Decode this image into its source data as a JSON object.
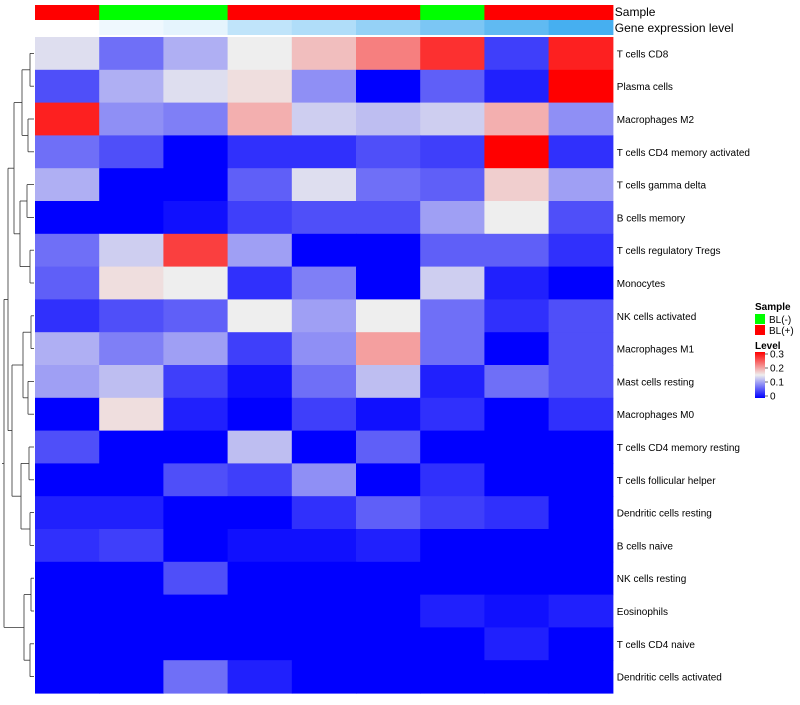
{
  "chart_data": {
    "type": "heatmap",
    "annotation_tracks": [
      {
        "name": "Sample",
        "values": [
          "BL(+)",
          "BL(-)",
          "BL(-)",
          "BL(+)",
          "BL(+)",
          "BL(+)",
          "BL(-)",
          "BL(+)",
          "BL(+)"
        ]
      },
      {
        "name": "Gene expression level",
        "values": [
          0.0,
          0.03,
          0.05,
          0.12,
          0.15,
          0.2,
          0.25,
          0.3,
          0.35
        ]
      }
    ],
    "rows": [
      "T cells CD8",
      "Plasma cells",
      "Macrophages M2",
      "T cells CD4 memory activated",
      "T cells gamma delta",
      "B cells memory",
      "T cells regulatory  Tregs",
      "Monocytes",
      "NK cells activated",
      "Macrophages M1",
      "Mast cells resting",
      "Macrophages M0",
      "T cells CD4 memory resting",
      "T cells follicular helper",
      "Dendritic cells resting",
      "B cells naive",
      "NK cells resting",
      "Eosinophils",
      "T cells CD4 naive",
      "Dendritic cells activated"
    ],
    "values": [
      [
        0.14,
        0.07,
        0.11,
        0.15,
        0.18,
        0.22,
        0.27,
        0.04,
        0.28
      ],
      [
        0.05,
        0.11,
        0.14,
        0.16,
        0.09,
        0.0,
        0.06,
        0.02,
        0.3
      ],
      [
        0.28,
        0.09,
        0.08,
        0.19,
        0.13,
        0.12,
        0.13,
        0.19,
        0.09
      ],
      [
        0.07,
        0.05,
        0.0,
        0.03,
        0.03,
        0.05,
        0.04,
        0.3,
        0.03
      ],
      [
        0.11,
        0.0,
        0.0,
        0.06,
        0.14,
        0.07,
        0.06,
        0.17,
        0.1
      ],
      [
        0.0,
        0.0,
        0.01,
        0.04,
        0.05,
        0.05,
        0.1,
        0.15,
        0.05
      ],
      [
        0.07,
        0.13,
        0.26,
        0.1,
        0.0,
        0.0,
        0.06,
        0.06,
        0.03
      ],
      [
        0.06,
        0.16,
        0.15,
        0.03,
        0.08,
        0.0,
        0.13,
        0.02,
        0.0
      ],
      [
        0.03,
        0.05,
        0.06,
        0.15,
        0.1,
        0.15,
        0.07,
        0.03,
        0.05
      ],
      [
        0.11,
        0.08,
        0.1,
        0.04,
        0.09,
        0.2,
        0.07,
        0.0,
        0.05
      ],
      [
        0.1,
        0.12,
        0.04,
        0.01,
        0.07,
        0.12,
        0.02,
        0.07,
        0.05
      ],
      [
        0.0,
        0.16,
        0.02,
        0.0,
        0.04,
        0.01,
        0.03,
        0.0,
        0.03
      ],
      [
        0.05,
        0.0,
        0.0,
        0.12,
        0.0,
        0.06,
        0.0,
        0.0,
        0.0
      ],
      [
        0.0,
        0.0,
        0.05,
        0.04,
        0.09,
        0.0,
        0.03,
        0.0,
        0.0
      ],
      [
        0.02,
        0.02,
        0.0,
        0.0,
        0.03,
        0.06,
        0.04,
        0.03,
        0.0
      ],
      [
        0.03,
        0.04,
        0.0,
        0.01,
        0.01,
        0.02,
        0.0,
        0.0,
        0.0
      ],
      [
        0.0,
        0.0,
        0.05,
        0.0,
        0.0,
        0.0,
        0.0,
        0.0,
        0.0
      ],
      [
        0.0,
        0.0,
        0.0,
        0.0,
        0.0,
        0.0,
        0.02,
        0.01,
        0.02
      ],
      [
        0.0,
        0.0,
        0.0,
        0.0,
        0.0,
        0.0,
        0.0,
        0.02,
        0.0
      ],
      [
        0.0,
        0.0,
        0.07,
        0.02,
        0.0,
        0.0,
        0.0,
        0.0,
        0.0
      ]
    ],
    "color_scale": {
      "low": "#0000ff",
      "mid": "#eeeeee",
      "high": "#ff0000",
      "mid_value": 0.15,
      "domain": [
        0,
        0.3
      ]
    },
    "legend": {
      "sample_title": "Sample",
      "sample_items": [
        {
          "label": "BL(-)",
          "color": "#00ff00"
        },
        {
          "label": "BL(+)",
          "color": "#ff0000"
        }
      ],
      "level_title": "Level",
      "level_ticks": [
        "0.3",
        "0.2",
        "0.1",
        "0"
      ],
      "placement": "right"
    },
    "row_dendrogram": true
  }
}
